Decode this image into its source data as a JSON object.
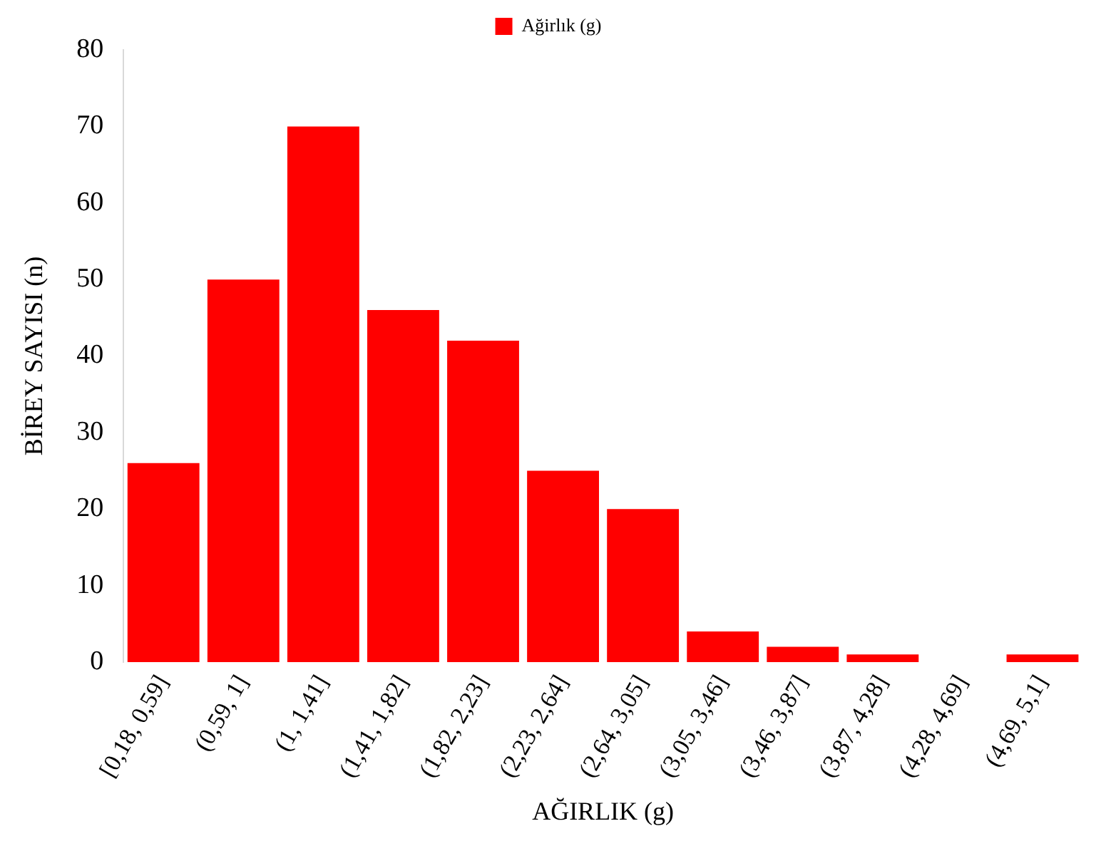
{
  "chart_data": {
    "type": "bar",
    "xlabel": "AĞIRLIK (g)",
    "ylabel": "BİREY SAYISI (n)",
    "categories": [
      "[0,18, 0,59]",
      "(0,59, 1]",
      "(1, 1,41]",
      "(1,41, 1,82]",
      "(1,82, 2,23]",
      "(2,23, 2,64]",
      "(2,64, 3,05]",
      "(3,05, 3,46]",
      "(3,46, 3,87]",
      "(3,87, 4,28]",
      "(4,28, 4,69]",
      "(4,69, 5,1]"
    ],
    "series": [
      {
        "name": "Ağirlık (g)",
        "color": "#ff0000",
        "values": [
          26,
          50,
          70,
          46,
          42,
          25,
          20,
          4,
          2,
          1,
          0,
          1
        ]
      }
    ],
    "ylim": [
      0,
      80
    ],
    "yticks": [
      0,
      10,
      20,
      30,
      40,
      50,
      60,
      70,
      80
    ],
    "grid": false,
    "legend": "top"
  }
}
